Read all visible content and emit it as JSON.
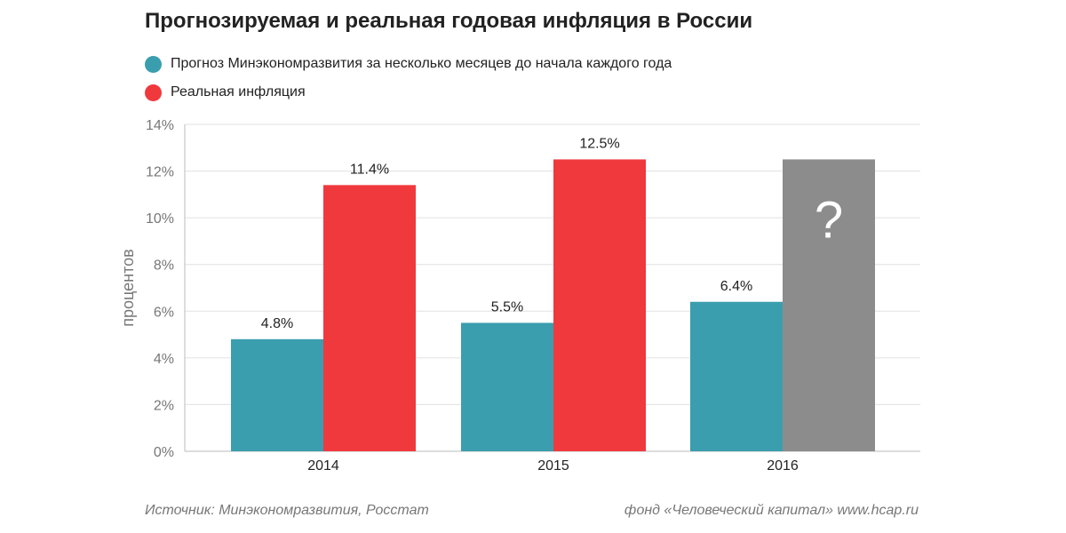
{
  "colors": {
    "forecast": "#3a9eae",
    "actual": "#f0393d",
    "unknown": "#8c8c8c",
    "grid": "#e0e0e0",
    "axis": "#bbbbbb",
    "text": "#222222",
    "muted": "#777777",
    "question": "#ffffff"
  },
  "source_text": "Источник: Минэкономразвития, Росстат",
  "credit_text": "фонд «Человеческий капитал» www.hcap.ru",
  "chart_data": {
    "type": "bar",
    "title": "Прогнозируемая и реальная годовая инфляция в России",
    "xlabel": "",
    "ylabel": "процентов",
    "ylim": [
      0,
      14
    ],
    "yticks": [
      0,
      2,
      4,
      6,
      8,
      10,
      12,
      14
    ],
    "ytick_suffix": "%",
    "grid": true,
    "legend_position": "top-left",
    "categories": [
      "2014",
      "2015",
      "2016"
    ],
    "series": [
      {
        "name": "Прогноз Минэкономразвития за несколько месяцев до начала каждого года",
        "key": "forecast",
        "values": [
          4.8,
          5.5,
          6.4
        ],
        "labels": [
          "4.8%",
          "5.5%",
          "6.4%"
        ]
      },
      {
        "name": "Реальная инфляция",
        "key": "actual",
        "values": [
          11.4,
          12.5,
          null
        ],
        "labels": [
          "11.4%",
          "12.5%",
          null
        ]
      }
    ],
    "placeholder": {
      "category": "2016",
      "series": "actual",
      "value": 12.5,
      "text": "?"
    }
  }
}
